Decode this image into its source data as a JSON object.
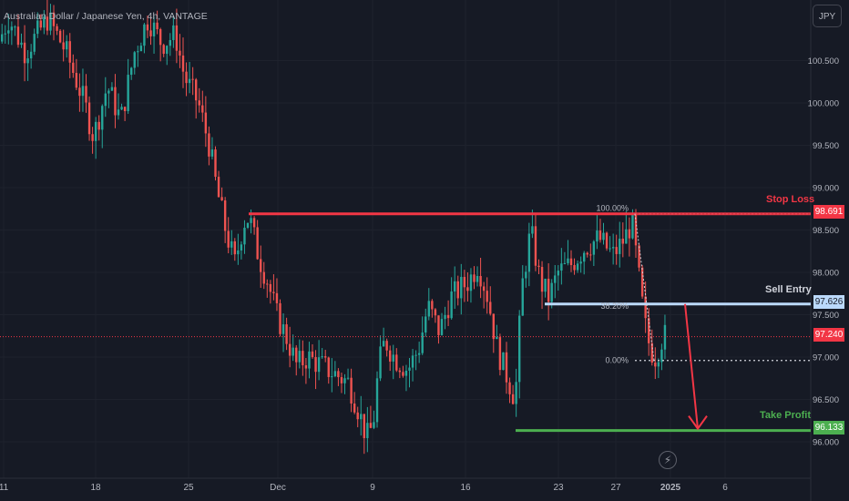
{
  "chart_title": "Australian Dollar / Japanese Yen, 4h, VANTAGE",
  "currency_button": "JPY",
  "colors": {
    "up": "#26a69a",
    "down": "#ef5350",
    "stop": "#f23645",
    "entry": "#bbd9fb",
    "tp": "#4caf50",
    "current": "#f23645"
  },
  "annotations": {
    "stop_loss": {
      "label": "Stop Loss",
      "price": "98.691"
    },
    "sell_entry": {
      "label": "Sell Entry",
      "price": "97.626"
    },
    "take_profit": {
      "label": "Take Profit",
      "price": "96.133"
    },
    "current_price": "97.240",
    "fib_100": "100.00%",
    "fib_38": "38.20%",
    "fib_0": "0.00%"
  },
  "chart_data": {
    "type": "candlestick",
    "title": "Australian Dollar / Japanese Yen, 4h, VANTAGE",
    "y_ticks": [
      "96.000",
      "96.500",
      "97.000",
      "97.500",
      "98.000",
      "98.500",
      "99.000",
      "99.500",
      "100.000",
      "100.500"
    ],
    "x_ticks": [
      "11",
      "18",
      "25",
      "Dec",
      "9",
      "16",
      "23",
      "27",
      "2025",
      "6"
    ],
    "ylim": [
      95.7,
      101.2
    ],
    "levels": {
      "stop_loss": 98.691,
      "sell_entry": 97.626,
      "take_profit": 96.133,
      "current": 97.24
    },
    "price_path": [
      [
        0,
        100.7
      ],
      [
        12,
        101.0
      ],
      [
        30,
        100.6
      ],
      [
        55,
        101.0
      ],
      [
        75,
        100.6
      ],
      [
        95,
        100.0
      ],
      [
        105,
        99.6
      ],
      [
        120,
        100.2
      ],
      [
        135,
        99.8
      ],
      [
        150,
        100.6
      ],
      [
        165,
        101.0
      ],
      [
        180,
        100.7
      ],
      [
        195,
        100.8
      ],
      [
        205,
        100.3
      ],
      [
        220,
        100.0
      ],
      [
        232,
        99.5
      ],
      [
        240,
        99.0
      ],
      [
        250,
        98.5
      ],
      [
        260,
        98.1
      ],
      [
        270,
        98.6
      ],
      [
        276,
        98.65
      ],
      [
        286,
        98.2
      ],
      [
        296,
        97.9
      ],
      [
        306,
        97.5
      ],
      [
        318,
        97.2
      ],
      [
        328,
        96.9
      ],
      [
        340,
        97.0
      ],
      [
        355,
        96.9
      ],
      [
        370,
        96.8
      ],
      [
        385,
        96.7
      ],
      [
        395,
        96.4
      ],
      [
        405,
        96.05
      ],
      [
        412,
        96.2
      ],
      [
        418,
        96.9
      ],
      [
        425,
        97.2
      ],
      [
        435,
        97.0
      ],
      [
        450,
        96.85
      ],
      [
        462,
        97.1
      ],
      [
        472,
        97.6
      ],
      [
        485,
        97.3
      ],
      [
        497,
        97.7
      ],
      [
        507,
        97.8
      ],
      [
        517,
        97.9
      ],
      [
        527,
        98.1
      ],
      [
        538,
        97.7
      ],
      [
        548,
        97.1
      ],
      [
        558,
        96.8
      ],
      [
        568,
        96.5
      ],
      [
        575,
        97.8
      ],
      [
        585,
        98.5
      ],
      [
        595,
        97.9
      ],
      [
        605,
        97.7
      ],
      [
        615,
        98.0
      ],
      [
        630,
        98.1
      ],
      [
        645,
        98.3
      ],
      [
        660,
        98.4
      ],
      [
        675,
        98.2
      ],
      [
        688,
        98.4
      ],
      [
        696,
        98.6
      ],
      [
        703,
        98.0
      ],
      [
        710,
        97.4
      ],
      [
        716,
        97.1
      ],
      [
        722,
        97.0
      ],
      [
        730,
        97.25
      ]
    ]
  }
}
